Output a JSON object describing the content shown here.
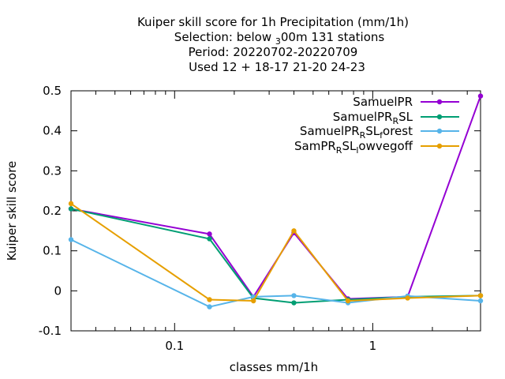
{
  "chart_data": {
    "type": "line",
    "title_lines": [
      "Kuiper skill score  for 1h Precipitation (mm/1h)",
      "Selection: below 300m    131 stations",
      "Period: 20220702-20220709",
      "Used  12 + 18-17 21-20 24-23"
    ],
    "xlabel": "classes mm/1h",
    "ylabel": "Kuiper skill score",
    "x_scale": "log",
    "xlim": [
      0.03,
      3.5
    ],
    "ylim": [
      -0.1,
      0.5
    ],
    "x_ticks": [
      {
        "value": 0.1,
        "label": "0.1"
      },
      {
        "value": 1,
        "label": "1"
      }
    ],
    "y_ticks": [
      {
        "value": -0.1,
        "label": "-0.1"
      },
      {
        "value": 0,
        "label": "0"
      },
      {
        "value": 0.1,
        "label": "0.1"
      },
      {
        "value": 0.2,
        "label": "0.2"
      },
      {
        "value": 0.3,
        "label": "0.3"
      },
      {
        "value": 0.4,
        "label": "0.4"
      },
      {
        "value": 0.5,
        "label": "0.5"
      }
    ],
    "grid": false,
    "legend_position": "top-right",
    "series": [
      {
        "name": "SamuelPR",
        "color": "#9400d3",
        "points": [
          [
            0.03,
            0.205
          ],
          [
            0.15,
            0.142
          ],
          [
            0.25,
            -0.015
          ],
          [
            0.4,
            0.145
          ],
          [
            0.75,
            -0.02
          ],
          [
            1.5,
            -0.015
          ],
          [
            3.5,
            0.487
          ]
        ]
      },
      {
        "name": "SamuelPR_R SL",
        "color": "#009e73",
        "points": [
          [
            0.03,
            0.205
          ],
          [
            0.15,
            0.13
          ],
          [
            0.25,
            -0.018
          ],
          [
            0.4,
            -0.03
          ],
          [
            0.75,
            -0.022
          ],
          [
            1.5,
            -0.015
          ],
          [
            3.5,
            -0.012
          ]
        ]
      },
      {
        "name": "SamuelPR_R SL_forest",
        "color": "#56b4e9",
        "points": [
          [
            0.03,
            0.128
          ],
          [
            0.15,
            -0.04
          ],
          [
            0.25,
            -0.015
          ],
          [
            0.4,
            -0.012
          ],
          [
            0.75,
            -0.03
          ],
          [
            1.5,
            -0.013
          ],
          [
            3.5,
            -0.025
          ]
        ]
      },
      {
        "name": "SamPR_R SL_lowvegoff",
        "color": "#e69f00",
        "points": [
          [
            0.03,
            0.218
          ],
          [
            0.15,
            -0.022
          ],
          [
            0.25,
            -0.025
          ],
          [
            0.4,
            0.15
          ],
          [
            0.75,
            -0.025
          ],
          [
            1.5,
            -0.018
          ],
          [
            3.5,
            -0.012
          ]
        ]
      }
    ]
  }
}
